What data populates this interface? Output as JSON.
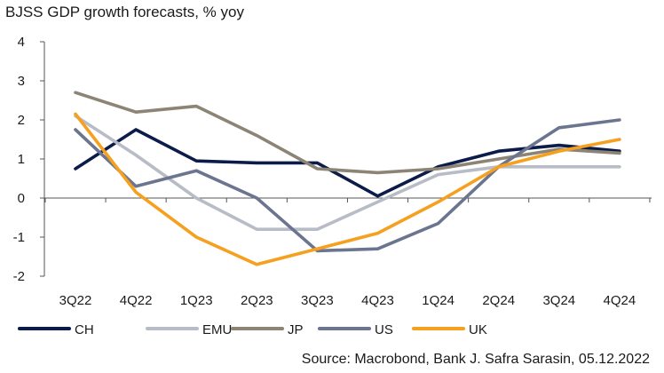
{
  "chart_data": {
    "type": "line",
    "title": "BJSS GDP growth forecasts, % yoy",
    "source": "Source: Macrobond, Bank J. Safra Sarasin, 05.12.2022",
    "categories": [
      "3Q22",
      "4Q22",
      "1Q23",
      "2Q23",
      "3Q23",
      "4Q23",
      "1Q24",
      "2Q24",
      "3Q24",
      "4Q24"
    ],
    "ylim": [
      -2,
      4
    ],
    "yticks": [
      -2,
      -1,
      0,
      1,
      2,
      3,
      4
    ],
    "ytick_labels": [
      "-2",
      "-1",
      "0",
      "1",
      "2",
      "3",
      "4"
    ],
    "grid": false,
    "legend_position": "bottom",
    "series": [
      {
        "name": "CH",
        "color": "#0c1c4a",
        "values": [
          0.75,
          1.75,
          0.95,
          0.9,
          0.9,
          0.05,
          0.8,
          1.2,
          1.35,
          1.2
        ]
      },
      {
        "name": "EMU",
        "color": "#b7bcc6",
        "values": [
          2.1,
          1.1,
          0.0,
          -0.8,
          -0.8,
          -0.1,
          0.6,
          0.8,
          0.8,
          0.8
        ]
      },
      {
        "name": "JP",
        "color": "#8c8474",
        "values": [
          2.7,
          2.2,
          2.35,
          1.6,
          0.75,
          0.65,
          0.75,
          1.0,
          1.25,
          1.15
        ]
      },
      {
        "name": "US",
        "color": "#6b7590",
        "values": [
          1.75,
          0.3,
          0.7,
          0.0,
          -1.35,
          -1.3,
          -0.65,
          0.8,
          1.8,
          2.0
        ]
      },
      {
        "name": "UK",
        "color": "#f5a01e",
        "values": [
          2.15,
          0.15,
          -1.0,
          -1.7,
          -1.3,
          -0.9,
          -0.1,
          0.8,
          1.2,
          1.5
        ]
      }
    ]
  }
}
